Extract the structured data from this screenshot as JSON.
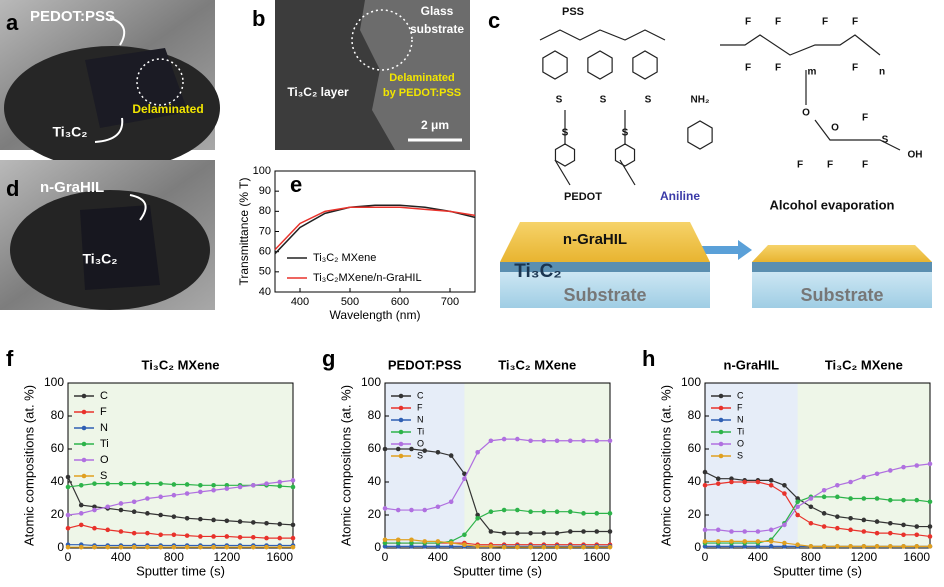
{
  "figure": {
    "panel_a": {
      "label": "a",
      "texts": [
        "PEDOT:PSS",
        "Delaminated",
        "Ti₃C₂"
      ]
    },
    "panel_b": {
      "label": "b",
      "texts": [
        "Glass",
        "substrate",
        "Ti₃C₂ layer",
        "Delaminated",
        "by PEDOT:PSS",
        "2 μm"
      ]
    },
    "panel_c": {
      "label": "c",
      "texts": [
        "PSS",
        "PEDOT",
        "Aniline",
        "Alcohol evaporation",
        "n-GraHIL",
        "Ti₃C₂",
        "Substrate",
        "Substrate"
      ],
      "atoms": [
        "S",
        "S",
        "S",
        "S",
        "S",
        "NH₂",
        "F",
        "F",
        "F",
        "F",
        "F",
        "F",
        "F",
        "O",
        "F",
        "F",
        "O",
        "F",
        "F",
        "S",
        "OH",
        "m",
        "n"
      ]
    },
    "panel_d": {
      "label": "d",
      "texts": [
        "n-GraHIL",
        "Ti₃C₂"
      ]
    }
  },
  "chart_data": [
    {
      "type": "line",
      "label": "e",
      "xlabel": "Wavelength (nm)",
      "ylabel": "Transmittance (% T)",
      "x": [
        350,
        400,
        450,
        500,
        550,
        600,
        650,
        700,
        750
      ],
      "series": [
        {
          "name": "Ti₃C₂ MXene",
          "color": "#222222",
          "values": [
            59,
            72,
            79,
            82,
            83,
            83,
            82,
            80,
            77
          ]
        },
        {
          "name": "Ti₃C₂MXene/n-GraHIL",
          "color": "#e8322b",
          "values": [
            61,
            74,
            80,
            82,
            82,
            82,
            81,
            80,
            78
          ]
        }
      ],
      "xlim": [
        350,
        750
      ],
      "ylim": [
        40,
        100
      ],
      "xticks": [
        400,
        500,
        600,
        700
      ],
      "yticks": [
        40,
        50,
        60,
        70,
        80,
        90,
        100
      ],
      "legend": "lower right",
      "markers": false
    },
    {
      "type": "line",
      "label": "f",
      "title": "Ti₃C₂ MXene",
      "xlabel": "Sputter time (s)",
      "ylabel": "Atomic compositions (at. %)",
      "x": [
        0,
        100,
        200,
        300,
        400,
        500,
        600,
        700,
        800,
        900,
        1000,
        1100,
        1200,
        1300,
        1400,
        1500,
        1600,
        1700
      ],
      "series": [
        {
          "name": "C",
          "color": "#333333",
          "values": [
            43,
            26,
            25,
            24,
            23,
            22,
            21,
            20,
            19,
            18,
            17.5,
            17,
            16.5,
            16,
            15.5,
            15,
            14.5,
            14
          ]
        },
        {
          "name": "F",
          "color": "#e8322b",
          "values": [
            12,
            14,
            12,
            11,
            10,
            9,
            9,
            8,
            8,
            7.5,
            7,
            7,
            7,
            6.5,
            6.5,
            6,
            6,
            6
          ]
        },
        {
          "name": "N",
          "color": "#2f5fb3",
          "values": [
            2,
            2,
            1.5,
            1.5,
            1.5,
            1.5,
            1.5,
            1.5,
            1.5,
            1.5,
            1.5,
            1.5,
            1.5,
            1.5,
            1.5,
            1.5,
            1.5,
            1.5
          ]
        },
        {
          "name": "Ti",
          "color": "#2db34a",
          "values": [
            37,
            38,
            39,
            39,
            39,
            39,
            39,
            39,
            38.5,
            38.5,
            38,
            38,
            38,
            38,
            38,
            38,
            37.5,
            37
          ]
        },
        {
          "name": "O",
          "color": "#b070e0",
          "values": [
            20,
            21,
            23,
            25,
            27,
            28,
            30,
            31,
            32,
            33,
            34,
            35,
            36,
            37,
            38,
            39,
            40,
            41
          ]
        },
        {
          "name": "S",
          "color": "#e0a020",
          "values": [
            0.5,
            0.5,
            0.5,
            0.5,
            0.5,
            0.5,
            0.5,
            0.5,
            0.5,
            0.5,
            0.5,
            0.5,
            0.5,
            0.5,
            0.5,
            0.5,
            0.5,
            0.5
          ]
        }
      ],
      "xlim": [
        0,
        1700
      ],
      "ylim": [
        0,
        100
      ],
      "xticks": [
        0,
        400,
        800,
        1200,
        1600
      ],
      "yticks": [
        0,
        20,
        40,
        60,
        80,
        100
      ],
      "legend": "upper left",
      "markers": true,
      "background": "#eef6e8"
    },
    {
      "type": "line",
      "label": "g",
      "annotations": [
        "PEDOT:PSS",
        "Ti₃C₂ MXene"
      ],
      "xlabel": "Sputter time (s)",
      "ylabel": "Atomic compositions (at. %)",
      "x": [
        0,
        100,
        200,
        300,
        400,
        500,
        600,
        700,
        800,
        900,
        1000,
        1100,
        1200,
        1300,
        1400,
        1500,
        1600,
        1700
      ],
      "series": [
        {
          "name": "C",
          "color": "#333333",
          "values": [
            60,
            60,
            60,
            59,
            58,
            56,
            45,
            20,
            10,
            9,
            9,
            9,
            9,
            9,
            10,
            10,
            10,
            10
          ]
        },
        {
          "name": "F",
          "color": "#e8322b",
          "values": [
            3,
            3,
            3,
            3,
            3,
            3,
            3,
            2,
            2,
            2,
            2,
            2,
            2,
            2,
            2,
            2,
            2,
            2
          ]
        },
        {
          "name": "N",
          "color": "#2f5fb3",
          "values": [
            1,
            1,
            1,
            1,
            1,
            1,
            1,
            1,
            1,
            1,
            1,
            1,
            1,
            1,
            1,
            1,
            1,
            1
          ]
        },
        {
          "name": "Ti",
          "color": "#2db34a",
          "values": [
            3,
            3,
            3,
            3,
            3,
            4,
            8,
            18,
            22,
            23,
            23,
            22,
            22,
            22,
            22,
            21,
            21,
            21
          ]
        },
        {
          "name": "O",
          "color": "#b070e0",
          "values": [
            24,
            23,
            23,
            23,
            25,
            28,
            42,
            58,
            65,
            66,
            66,
            65,
            65,
            65,
            65,
            65,
            65,
            65
          ]
        },
        {
          "name": "S",
          "color": "#e0a020",
          "values": [
            5,
            5,
            5,
            4,
            4,
            3,
            2,
            1,
            1,
            0.5,
            0.5,
            0.5,
            0.5,
            0.5,
            0.5,
            0.5,
            0.5,
            0.5
          ]
        }
      ],
      "xlim": [
        0,
        1700
      ],
      "ylim": [
        0,
        100
      ],
      "xticks": [
        0,
        400,
        800,
        1200,
        1600
      ],
      "yticks": [
        0,
        20,
        40,
        60,
        80,
        100
      ],
      "legend": "upper left",
      "markers": true,
      "background": "#eef6e8",
      "shade": {
        "until": 600,
        "color": "#e6edf8"
      }
    },
    {
      "type": "line",
      "label": "h",
      "annotations": [
        "n-GraHIL",
        "Ti₃C₂ MXene"
      ],
      "xlabel": "Sputter time (s)",
      "ylabel": "Atomic compositions (at. %)",
      "x": [
        0,
        100,
        200,
        300,
        400,
        500,
        600,
        700,
        800,
        900,
        1000,
        1100,
        1200,
        1300,
        1400,
        1500,
        1600,
        1700
      ],
      "series": [
        {
          "name": "C",
          "color": "#333333",
          "values": [
            46,
            42,
            42,
            41,
            41,
            41,
            38,
            30,
            25,
            21,
            19,
            18,
            17,
            16,
            15,
            14,
            13,
            13
          ]
        },
        {
          "name": "F",
          "color": "#e8322b",
          "values": [
            38,
            39,
            40,
            40,
            40,
            38,
            33,
            20,
            15,
            13,
            12,
            11,
            10,
            9,
            9,
            8,
            8,
            7
          ]
        },
        {
          "name": "N",
          "color": "#2f5fb3",
          "values": [
            1,
            1,
            1,
            1,
            1,
            1,
            1,
            1,
            1,
            1,
            1,
            1,
            1,
            1,
            1,
            1,
            1,
            1
          ]
        },
        {
          "name": "Ti",
          "color": "#2db34a",
          "values": [
            3,
            3,
            3,
            3,
            3,
            5,
            15,
            28,
            31,
            31,
            31,
            30,
            30,
            30,
            29,
            29,
            29,
            28
          ]
        },
        {
          "name": "O",
          "color": "#b070e0",
          "values": [
            11,
            11,
            10,
            10,
            10,
            11,
            14,
            25,
            30,
            35,
            38,
            40,
            43,
            45,
            47,
            49,
            50,
            51
          ]
        },
        {
          "name": "S",
          "color": "#e0a020",
          "values": [
            4,
            4,
            4,
            4,
            4,
            4,
            3,
            2,
            1,
            1,
            1,
            1,
            1,
            1,
            1,
            1,
            1,
            1
          ]
        }
      ],
      "xlim": [
        0,
        1700
      ],
      "ylim": [
        0,
        100
      ],
      "xticks": [
        0,
        400,
        800,
        1200,
        1600
      ],
      "yticks": [
        0,
        20,
        40,
        60,
        80,
        100
      ],
      "legend": "upper left",
      "markers": true,
      "background": "#eef6e8",
      "shade": {
        "until": 700,
        "color": "#e6edf8"
      }
    }
  ]
}
